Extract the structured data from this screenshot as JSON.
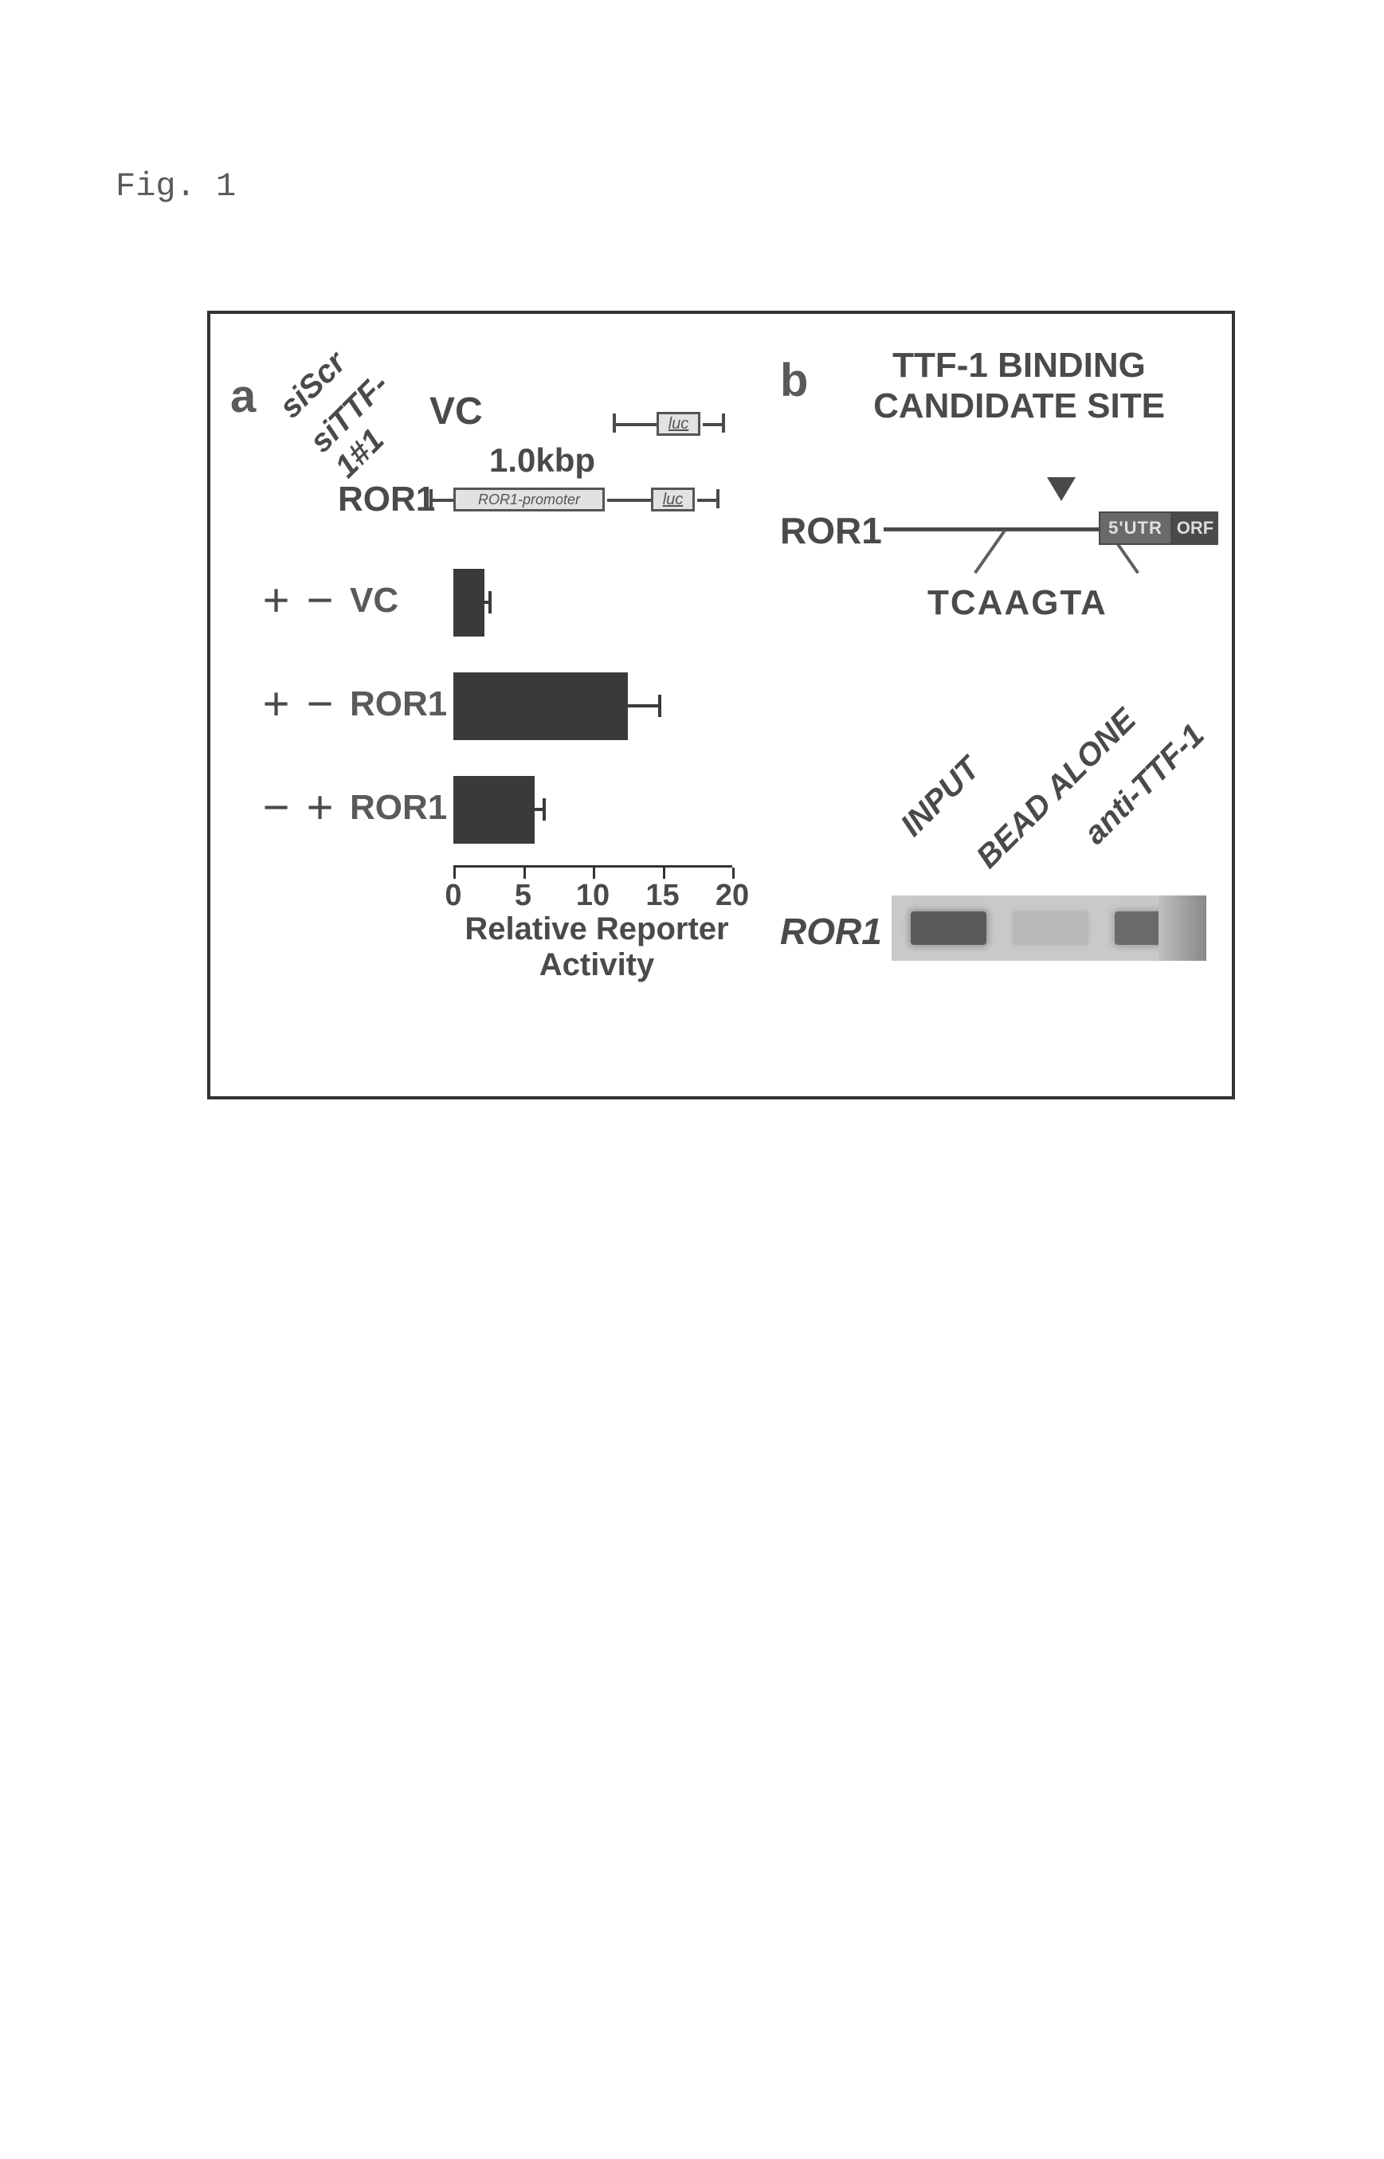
{
  "figure_label": "Fig. 1",
  "panel_a": {
    "marker": "a",
    "diag_labels": [
      "siScr",
      "siTTF-1#1"
    ],
    "vc_label": "VC",
    "kbp_label": "1.0kbp",
    "ror1_label": "ROR1",
    "luc_label": "luc",
    "promoter_label": "ROR1-promoter",
    "conditions": [
      {
        "siScr": "+",
        "siTTF1": "−",
        "construct": "VC"
      },
      {
        "siScr": "+",
        "siTTF1": "−",
        "construct": "ROR1"
      },
      {
        "siScr": "−",
        "siTTF1": "+",
        "construct": "ROR1"
      }
    ],
    "chart": {
      "type": "bar",
      "orientation": "horizontal",
      "xlim": [
        0,
        20
      ],
      "xticks": [
        0,
        5,
        10,
        15,
        20
      ],
      "xlabel": "Relative  Reporter Activity",
      "bars": [
        {
          "value": 2.2,
          "error": 0.4
        },
        {
          "value": 12.5,
          "error": 2.3
        },
        {
          "value": 5.8,
          "error": 0.7
        }
      ],
      "bar_color": "#3a3a3a",
      "axis_color": "#333333",
      "label_fontsize": 40,
      "tick_fontsize": 38
    }
  },
  "panel_b": {
    "marker": "b",
    "title_line1": "TTF-1 BINDING",
    "title_line2": "CANDIDATE SITE",
    "gene_label": "ROR1",
    "sequence": "TCAAGTA",
    "utr_label": "5'UTR",
    "orf_label": "ORF",
    "chip_lanes": [
      "INPUT",
      "BEAD ALONE",
      "anti-TTF-1"
    ],
    "gel_label": "ROR1",
    "gel": {
      "background_color": "#c9c9c9",
      "bands": [
        {
          "lane": "INPUT",
          "intensity": "strong",
          "color": "#5a5a5a"
        },
        {
          "lane": "BEAD ALONE",
          "intensity": "faint",
          "color": "#b8b8b8"
        },
        {
          "lane": "anti-TTF-1",
          "intensity": "medium",
          "color": "#6a6a6a"
        }
      ]
    }
  },
  "colors": {
    "text": "#4a4a4a",
    "frame_border": "#333333",
    "box_fill": "#e2e2e2",
    "utr_fill": "#6a6a6a",
    "orf_fill": "#4a4a4a"
  }
}
